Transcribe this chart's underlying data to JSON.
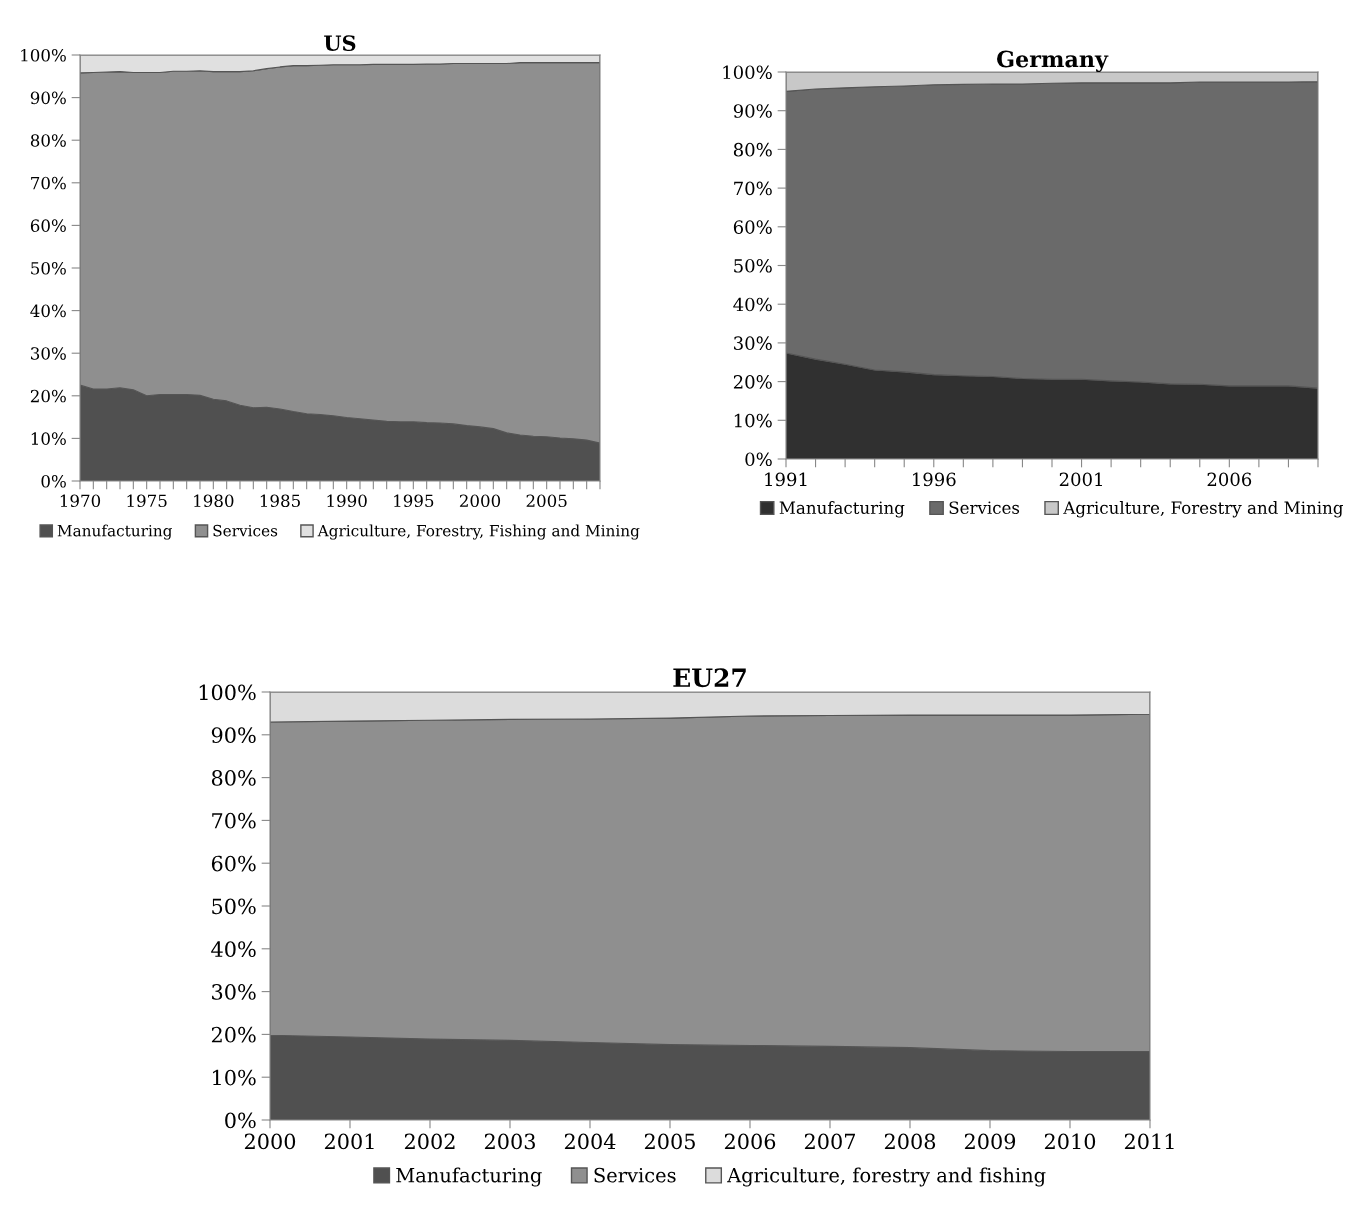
{
  "chart_data": [
    {
      "type": "area",
      "title": "US",
      "stacked": true,
      "legend": "bottom",
      "grid": false,
      "x": [
        1970,
        1971,
        1972,
        1973,
        1974,
        1975,
        1976,
        1977,
        1978,
        1979,
        1980,
        1981,
        1982,
        1983,
        1984,
        1985,
        1986,
        1987,
        1988,
        1989,
        1990,
        1991,
        1992,
        1993,
        1994,
        1995,
        1996,
        1997,
        1998,
        1999,
        2000,
        2001,
        2002,
        2003,
        2004,
        2005,
        2006,
        2007,
        2008,
        2009
      ],
      "xlim": [
        1970,
        2009
      ],
      "xticks": [
        1970,
        {
          "value": 1971,
          "label": null
        },
        {
          "value": 1972,
          "label": null
        },
        {
          "value": 1973,
          "label": null
        },
        {
          "value": 1974,
          "label": null
        },
        1975,
        {
          "value": 1976,
          "label": null
        },
        {
          "value": 1977,
          "label": null
        },
        {
          "value": 1978,
          "label": null
        },
        {
          "value": 1979,
          "label": null
        },
        1980,
        {
          "value": 1981,
          "label": null
        },
        {
          "value": 1982,
          "label": null
        },
        {
          "value": 1983,
          "label": null
        },
        {
          "value": 1984,
          "label": null
        },
        1985,
        {
          "value": 1986,
          "label": null
        },
        {
          "value": 1987,
          "label": null
        },
        {
          "value": 1988,
          "label": null
        },
        {
          "value": 1989,
          "label": null
        },
        1990,
        {
          "value": 1991,
          "label": null
        },
        {
          "value": 1992,
          "label": null
        },
        {
          "value": 1993,
          "label": null
        },
        {
          "value": 1994,
          "label": null
        },
        1995,
        {
          "value": 1996,
          "label": null
        },
        {
          "value": 1997,
          "label": null
        },
        {
          "value": 1998,
          "label": null
        },
        {
          "value": 1999,
          "label": null
        },
        2000,
        {
          "value": 2001,
          "label": null
        },
        {
          "value": 2002,
          "label": null
        },
        {
          "value": 2003,
          "label": null
        },
        {
          "value": 2004,
          "label": null
        },
        2005,
        {
          "value": 2006,
          "label": null
        },
        {
          "value": 2007,
          "label": null
        },
        {
          "value": 2008,
          "label": null
        },
        {
          "value": 2009,
          "label": null
        }
      ],
      "ylim": [
        0,
        100
      ],
      "yticks": [
        {
          "value": 0,
          "label": "0%"
        },
        {
          "value": 10,
          "label": "10%"
        },
        {
          "value": 20,
          "label": "20%"
        },
        {
          "value": 30,
          "label": "30%"
        },
        {
          "value": 40,
          "label": "40%"
        },
        {
          "value": 50,
          "label": "50%"
        },
        {
          "value": 60,
          "label": "60%"
        },
        {
          "value": 70,
          "label": "70%"
        },
        {
          "value": 80,
          "label": "80%"
        },
        {
          "value": 90,
          "label": "90%"
        },
        {
          "value": 100,
          "label": "100%"
        }
      ],
      "series": [
        {
          "name": "Manufacturing",
          "color": "#505050",
          "values": [
            22.5,
            21.6,
            21.6,
            21.9,
            21.4,
            20.0,
            20.3,
            20.3,
            20.3,
            20.1,
            19.2,
            18.8,
            17.8,
            17.2,
            17.3,
            16.9,
            16.3,
            15.8,
            15.6,
            15.3,
            14.9,
            14.6,
            14.3,
            14.0,
            13.9,
            13.9,
            13.7,
            13.6,
            13.4,
            13.0,
            12.7,
            12.3,
            11.3,
            10.8,
            10.5,
            10.4,
            10.1,
            9.9,
            9.6,
            8.9
          ]
        },
        {
          "name": "Services",
          "color": "#8f8f8f",
          "values": [
            73.3,
            74.3,
            74.4,
            74.2,
            74.5,
            75.9,
            75.6,
            75.9,
            75.9,
            76.2,
            76.9,
            77.3,
            78.3,
            79.1,
            79.5,
            80.3,
            81.2,
            81.7,
            82.0,
            82.4,
            82.8,
            83.1,
            83.5,
            83.8,
            83.9,
            83.9,
            84.2,
            84.3,
            84.6,
            85.0,
            85.3,
            85.7,
            86.7,
            87.4,
            87.7,
            87.8,
            88.1,
            88.3,
            88.6,
            89.3
          ]
        },
        {
          "name": "Agriculture, Forestry, Fishing and Mining",
          "color": "#e0e0e0",
          "values": [
            4.2,
            4.1,
            4.0,
            3.9,
            4.1,
            4.1,
            4.1,
            3.8,
            3.8,
            3.7,
            3.9,
            3.9,
            3.9,
            3.7,
            3.2,
            2.8,
            2.5,
            2.5,
            2.4,
            2.3,
            2.3,
            2.3,
            2.2,
            2.2,
            2.2,
            2.2,
            2.1,
            2.1,
            2.0,
            2.0,
            2.0,
            2.0,
            2.0,
            1.8,
            1.8,
            1.8,
            1.8,
            1.8,
            1.8,
            1.8
          ]
        }
      ]
    },
    {
      "type": "area",
      "title": "Germany",
      "stacked": true,
      "legend": "bottom",
      "grid": false,
      "x": [
        1991,
        1992,
        1993,
        1994,
        1995,
        1996,
        1997,
        1998,
        1999,
        2000,
        2001,
        2002,
        2003,
        2004,
        2005,
        2006,
        2007,
        2008,
        2009
      ],
      "xlim": [
        1991,
        2009
      ],
      "xticks": [
        1991,
        {
          "value": 1992,
          "label": null
        },
        {
          "value": 1993,
          "label": null
        },
        {
          "value": 1994,
          "label": null
        },
        {
          "value": 1995,
          "label": null
        },
        1996,
        {
          "value": 1997,
          "label": null
        },
        {
          "value": 1998,
          "label": null
        },
        {
          "value": 1999,
          "label": null
        },
        {
          "value": 2000,
          "label": null
        },
        2001,
        {
          "value": 2002,
          "label": null
        },
        {
          "value": 2003,
          "label": null
        },
        {
          "value": 2004,
          "label": null
        },
        {
          "value": 2005,
          "label": null
        },
        2006,
        {
          "value": 2007,
          "label": null
        },
        {
          "value": 2008,
          "label": null
        },
        {
          "value": 2009,
          "label": null
        }
      ],
      "ylim": [
        0,
        100
      ],
      "yticks": [
        {
          "value": 0,
          "label": "0%"
        },
        {
          "value": 10,
          "label": "10%"
        },
        {
          "value": 20,
          "label": "20%"
        },
        {
          "value": 30,
          "label": "30%"
        },
        {
          "value": 40,
          "label": "40%"
        },
        {
          "value": 50,
          "label": "50%"
        },
        {
          "value": 60,
          "label": "60%"
        },
        {
          "value": 70,
          "label": "70%"
        },
        {
          "value": 80,
          "label": "80%"
        },
        {
          "value": 90,
          "label": "90%"
        },
        {
          "value": 100,
          "label": "100%"
        }
      ],
      "series": [
        {
          "name": "Manufacturing",
          "color": "#303030",
          "values": [
            27.4,
            25.8,
            24.5,
            23.0,
            22.5,
            21.8,
            21.5,
            21.3,
            20.8,
            20.6,
            20.6,
            20.2,
            19.9,
            19.4,
            19.3,
            18.9,
            18.9,
            18.9,
            18.3
          ]
        },
        {
          "name": "Services",
          "color": "#6a6a6a",
          "values": [
            67.6,
            69.8,
            71.4,
            73.2,
            73.9,
            74.9,
            75.3,
            75.6,
            76.1,
            76.5,
            76.6,
            77.0,
            77.3,
            77.8,
            78.1,
            78.5,
            78.5,
            78.5,
            79.2
          ]
        },
        {
          "name": "Agriculture, Forestry and Mining",
          "color": "#c8c8c8",
          "values": [
            5.0,
            4.4,
            4.1,
            3.8,
            3.6,
            3.3,
            3.2,
            3.1,
            3.1,
            2.9,
            2.8,
            2.8,
            2.8,
            2.8,
            2.6,
            2.6,
            2.6,
            2.6,
            2.5
          ]
        }
      ]
    },
    {
      "type": "area",
      "title": "EU27",
      "stacked": true,
      "legend": "bottom",
      "grid": false,
      "x": [
        2000,
        2001,
        2002,
        2003,
        2004,
        2005,
        2006,
        2007,
        2008,
        2009,
        2010,
        2011
      ],
      "xlim": [
        2000,
        2011
      ],
      "xticks": [
        2000,
        2001,
        2002,
        2003,
        2004,
        2005,
        2006,
        2007,
        2008,
        2009,
        2010,
        2011
      ],
      "ylim": [
        0,
        100
      ],
      "yticks": [
        {
          "value": 0,
          "label": "0%"
        },
        {
          "value": 10,
          "label": "10%"
        },
        {
          "value": 20,
          "label": "20%"
        },
        {
          "value": 30,
          "label": "30%"
        },
        {
          "value": 40,
          "label": "40%"
        },
        {
          "value": 50,
          "label": "50%"
        },
        {
          "value": 60,
          "label": "60%"
        },
        {
          "value": 70,
          "label": "70%"
        },
        {
          "value": 80,
          "label": "80%"
        },
        {
          "value": 90,
          "label": "90%"
        },
        {
          "value": 100,
          "label": "100%"
        }
      ],
      "series": [
        {
          "name": "Manufacturing",
          "color": "#505050",
          "values": [
            19.8,
            19.4,
            18.9,
            18.6,
            18.1,
            17.6,
            17.4,
            17.2,
            16.9,
            16.2,
            16.0,
            16.0
          ]
        },
        {
          "name": "Services",
          "color": "#8f8f8f",
          "values": [
            73.2,
            73.8,
            74.5,
            75.0,
            75.6,
            76.3,
            77.0,
            77.3,
            77.7,
            78.4,
            78.6,
            78.8
          ]
        },
        {
          "name": "Agriculture, forestry and fishing",
          "color": "#dcdcdc",
          "values": [
            7.0,
            6.8,
            6.6,
            6.4,
            6.3,
            6.1,
            5.6,
            5.5,
            5.4,
            5.4,
            5.4,
            5.2
          ]
        }
      ]
    }
  ]
}
